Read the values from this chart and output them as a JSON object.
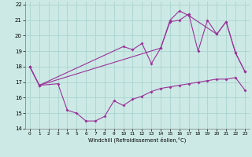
{
  "xlabel": "Windchill (Refroidissement éolien,°C)",
  "bg_color": "#cce9e5",
  "grid_color": "#aad4cf",
  "line_color": "#993399",
  "xlim": [
    -0.5,
    23.5
  ],
  "ylim": [
    14,
    22.2
  ],
  "xticks": [
    0,
    1,
    2,
    3,
    4,
    5,
    6,
    7,
    8,
    9,
    10,
    11,
    12,
    13,
    14,
    15,
    16,
    17,
    18,
    19,
    20,
    21,
    22,
    23
  ],
  "yticks": [
    14,
    15,
    16,
    17,
    18,
    19,
    20,
    21,
    22
  ],
  "line1_x": [
    0,
    1,
    3,
    4,
    5,
    6,
    7,
    8,
    9,
    10,
    11,
    12,
    13,
    14,
    15,
    16,
    17,
    18,
    19,
    20,
    21,
    22,
    23
  ],
  "line1_y": [
    18,
    16.8,
    16.9,
    15.2,
    15.0,
    14.5,
    14.5,
    14.8,
    15.8,
    15.5,
    15.9,
    16.1,
    16.4,
    16.6,
    16.7,
    16.8,
    16.9,
    17.0,
    17.1,
    17.2,
    17.2,
    17.3,
    16.5
  ],
  "line2_x": [
    0,
    1,
    10,
    11,
    12,
    13,
    14,
    15,
    16,
    17,
    18,
    19,
    20,
    21,
    22,
    23
  ],
  "line2_y": [
    18,
    16.8,
    19.3,
    19.1,
    19.5,
    18.2,
    19.2,
    20.9,
    21.0,
    21.4,
    19.0,
    21.0,
    20.1,
    20.9,
    18.9,
    17.7
  ],
  "line3_x": [
    0,
    1,
    14,
    15,
    16,
    17,
    20,
    21,
    22,
    23
  ],
  "line3_y": [
    18,
    16.8,
    19.2,
    21.0,
    21.6,
    21.3,
    20.1,
    20.9,
    18.9,
    17.7
  ]
}
